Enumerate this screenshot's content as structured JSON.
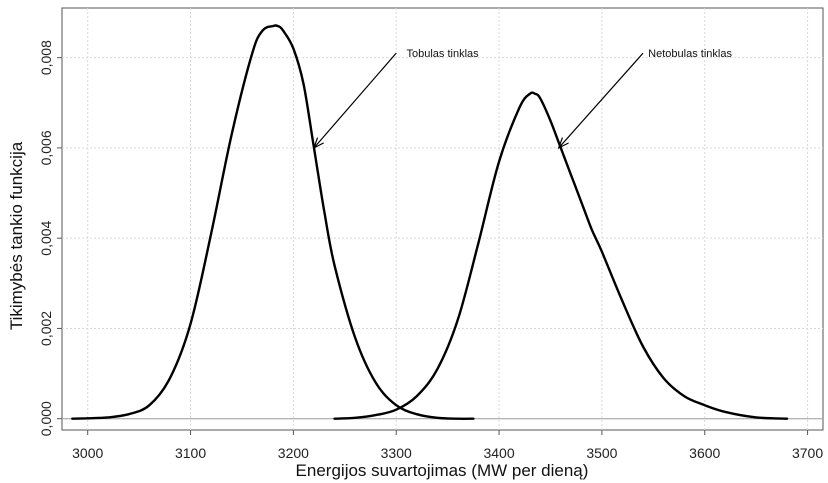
{
  "chart_data": {
    "type": "line",
    "xlabel": "Energijos suvartojimas (MW per dieną)",
    "ylabel": "Tikimybės tankio funkcija",
    "xlim": [
      2975,
      3715
    ],
    "ylim": [
      -0.00025,
      0.0091
    ],
    "x_ticks": [
      3000,
      3100,
      3200,
      3300,
      3400,
      3500,
      3600,
      3700
    ],
    "x_tick_labels": [
      "3000",
      "3100",
      "3200",
      "3300",
      "3400",
      "3500",
      "3600",
      "3700"
    ],
    "y_ticks": [
      0.0,
      0.002,
      0.004,
      0.006,
      0.008
    ],
    "y_tick_labels": [
      "0,000",
      "0,002",
      "0,004",
      "0,006",
      "0,008"
    ],
    "grid": true,
    "series": [
      {
        "x": [
          2985,
          3000,
          3020,
          3040,
          3060,
          3080,
          3100,
          3120,
          3140,
          3160,
          3170,
          3180,
          3185,
          3190,
          3200,
          3210,
          3220,
          3230,
          3240,
          3260,
          3280,
          3300,
          3320,
          3340,
          3360,
          3375
        ],
        "y": [
          0.0,
          1e-05,
          3e-05,
          0.0001,
          0.0003,
          0.0009,
          0.0021,
          0.0041,
          0.0063,
          0.0081,
          0.0086,
          0.0087,
          0.0087,
          0.0086,
          0.0082,
          0.0074,
          0.006,
          0.0046,
          0.0034,
          0.0018,
          0.0008,
          0.0003,
          0.0001,
          2e-05,
          0.0,
          0.0
        ]
      },
      {
        "x": [
          3240,
          3260,
          3280,
          3300,
          3320,
          3340,
          3360,
          3380,
          3400,
          3420,
          3430,
          3435,
          3440,
          3450,
          3460,
          3470,
          3480,
          3490,
          3500,
          3520,
          3540,
          3560,
          3580,
          3600,
          3620,
          3650,
          3680
        ],
        "y": [
          0.0,
          2e-05,
          8e-05,
          0.0002,
          0.0005,
          0.0011,
          0.0022,
          0.0039,
          0.0057,
          0.0069,
          0.0072,
          0.0072,
          0.0071,
          0.0066,
          0.006,
          0.0054,
          0.0048,
          0.0042,
          0.0037,
          0.0026,
          0.0016,
          0.0009,
          0.0005,
          0.0003,
          0.00015,
          3e-05,
          0.0
        ]
      }
    ],
    "annotations": [
      {
        "text": "Tobulas tinklas",
        "text_at": [
          3310,
          0.0081
        ],
        "arrow_from": [
          3300,
          0.0081
        ],
        "arrow_to": [
          3220,
          0.006
        ]
      },
      {
        "text": "Netobulas tinklas",
        "text_at": [
          3545,
          0.0081
        ],
        "arrow_from": [
          3540,
          0.0081
        ],
        "arrow_to": [
          3458,
          0.006
        ]
      }
    ]
  }
}
